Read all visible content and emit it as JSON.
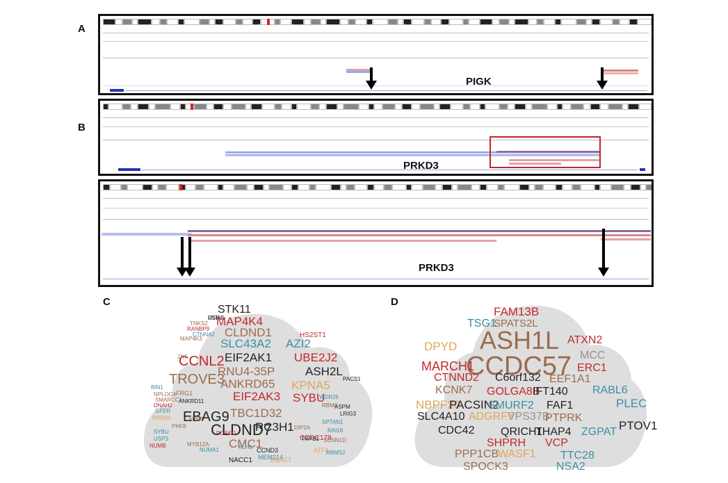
{
  "panel_letters": {
    "a": "A",
    "b": "B",
    "c": "C",
    "d": "D"
  },
  "gene_labels": {
    "pigk": "PIGK",
    "prkd3_b1": "PRKD3",
    "prkd3_b2": "PRKD3"
  },
  "colors": {
    "red": "#c1272d",
    "black": "#222222",
    "tan": "#9c6b4e",
    "blue": "#3b8ea5",
    "orange": "#e0a45a",
    "cloud_bg": "#dedede"
  },
  "cloud_c": [
    "FSTL1",
    "TNKS2",
    "RANBP9",
    "CTNNA2",
    "MAP4K3",
    "ZNF",
    "BIN1",
    "NPLOC4",
    "DNAH2",
    "GFER",
    "RBM39",
    "SYBU",
    "USP3",
    "NUMB",
    "PHF8",
    "STK11",
    "MAP4K4",
    "CLDND1",
    "SLC43A2",
    "AZI2",
    "HS2ST1",
    "CCNL2",
    "EIF2AK1",
    "UBE2J2",
    "RNU4-35P",
    "ASH2L",
    "TROVE3",
    "ANKRD65",
    "KPNA5",
    "EIF2AK3",
    "SYBU",
    "EBAG9",
    "TBC1D32",
    "RC3H1",
    "CLDND7",
    "CMC1",
    "NACC1",
    "ARNT",
    "SMARCC1",
    "FRG1",
    "ANKRD11",
    "MYB12A",
    "NUMA1",
    "DCAKD",
    "CCDC178",
    "SCNN1D",
    "RBMS2",
    "RBM6",
    "LRIG3",
    "ASPM",
    "PACS1",
    "TRPS1",
    "DIP2A",
    "SPTAN1",
    "RAI18",
    "WDR26",
    "KLH1",
    "MEM214",
    "CCND3",
    "EBAG7",
    "ATF4",
    "USP4"
  ],
  "cloud_d": [
    "FAM13B",
    "TSG1",
    "SPATS2L",
    "ASH1L",
    "ATXN2",
    "DPYD",
    "CCDC57",
    "MCC",
    "MARCH1",
    "ERC1",
    "CTNND2",
    "C6orf132",
    "EEF1A1",
    "KCNK7",
    "GOLGA8B",
    "IFT140",
    "RABL6",
    "NBPF20",
    "PACSIN2",
    "SMURF2",
    "FAF1",
    "PLEC",
    "SLC4A10",
    "VPS37B",
    "PTPRK",
    "CDC42",
    "ADGRF7",
    "QRICH1",
    "THAP4",
    "ZGPAT",
    "PTOV1",
    "VCP",
    "SHPRH",
    "TTC28",
    "PPP1CB",
    "WASF1",
    "NSA2",
    "SPOCK3"
  ]
}
